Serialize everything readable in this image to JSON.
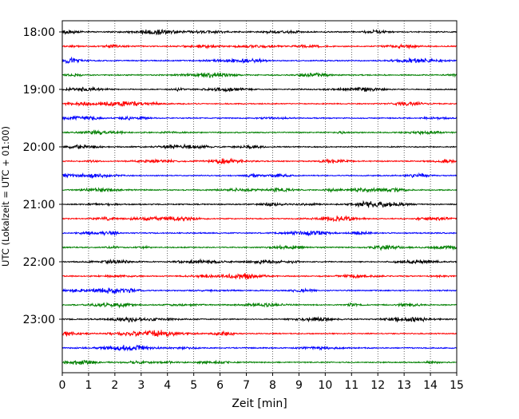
{
  "chart_data": {
    "type": "line",
    "title": "",
    "xlabel": "Zeit  [min]",
    "ylabel": "UTC (Lokalzeit = UTC + 01:00)",
    "xlim": [
      0,
      15
    ],
    "x_ticks": [
      0,
      1,
      2,
      3,
      4,
      5,
      6,
      7,
      8,
      9,
      10,
      11,
      12,
      13,
      14,
      15
    ],
    "grid": "vertical dotted",
    "y_tick_labels": [
      "18:00",
      "19:00",
      "20:00",
      "21:00",
      "22:00",
      "23:00"
    ],
    "trace_interval_minutes": 15,
    "start_time": "18:00",
    "trace_count": 24,
    "trace_color_cycle": [
      "#000000",
      "#ff0000",
      "#0000ff",
      "#008000"
    ]
  }
}
